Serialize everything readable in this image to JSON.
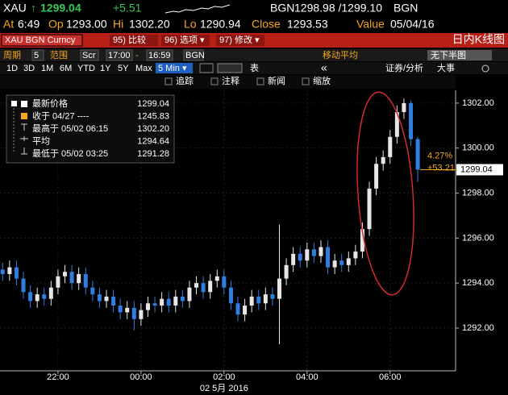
{
  "header": {
    "ticker": "XAU",
    "arrow": "↑",
    "last": "1299.04",
    "change": "+5.51",
    "source": "BGN",
    "bid_ask": "1298.98 /1299.10",
    "source2": "BGN"
  },
  "quote": [
    {
      "label": "At",
      "value": "6:49"
    },
    {
      "label": "Op",
      "value": "1293.00"
    },
    {
      "label": "Hi",
      "value": "1302.20"
    },
    {
      "label": "Lo",
      "value": "1290.94"
    },
    {
      "label": "Close",
      "value": "1293.53"
    },
    {
      "label": "Value",
      "value": "05/04/16"
    }
  ],
  "toolbar": {
    "security": "XAU BGN Curncy",
    "buttons": [
      "95) 比较",
      "96) 选项 ▾",
      "97) 修改 ▾"
    ],
    "view": "日内K线图"
  },
  "settings": {
    "items": [
      "周期",
      "5",
      "范围",
      "Scr",
      "17:00",
      "-",
      "16:59",
      "BGN"
    ],
    "moving_avg": "移动平均",
    "lower_panel": "无下半图"
  },
  "periods": {
    "items": [
      "1D",
      "3D",
      "1M",
      "6M",
      "YTD",
      "1Y",
      "5Y",
      "Max"
    ],
    "interval": "5 Min ▾",
    "table": "表",
    "nav": "«",
    "analysis": "证券/分析",
    "events": "大事"
  },
  "tools": [
    "追踪",
    "注释",
    "新闻",
    "缩放"
  ],
  "legend": [
    {
      "label": "最新价格",
      "value": "1299.04"
    },
    {
      "label": "收于 04/27 ----",
      "value": "1245.83"
    },
    {
      "label": "最高于 05/02 06:15",
      "value": "1302.20"
    },
    {
      "label": "平均",
      "value": "1294.64"
    },
    {
      "label": "最低于 05/02 03:25",
      "value": "1291.28"
    }
  ],
  "chart_data": {
    "type": "candlestick",
    "categories": [
      null,
      null,
      null,
      null,
      null,
      null,
      null,
      null,
      "22:00",
      null,
      null,
      null,
      null,
      null,
      null,
      null,
      null,
      null,
      null,
      null,
      "00:00",
      null,
      null,
      null,
      null,
      null,
      null,
      null,
      null,
      null,
      null,
      null,
      "02:00",
      null,
      null,
      null,
      null,
      null,
      null,
      null,
      null,
      null,
      null,
      null,
      "04:00",
      null,
      null,
      null,
      null,
      null,
      null,
      null,
      null,
      null,
      null,
      null,
      "06:00",
      null,
      null,
      null,
      null
    ],
    "x_sublabel": "02 5月 2016",
    "open": [
      1294.6,
      1294.4,
      1294.7,
      1294.2,
      1293.6,
      1293.2,
      1293.5,
      1293.3,
      1293.8,
      1294.3,
      1294.5,
      1294.0,
      1294.4,
      1293.8,
      1293.5,
      1293.2,
      1293.4,
      1293.0,
      1292.7,
      1292.9,
      1292.4,
      1292.8,
      1293.1,
      1293.0,
      1293.3,
      1293.0,
      1293.4,
      1293.2,
      1293.8,
      1294.0,
      1293.6,
      1294.1,
      1294.3,
      1293.8,
      1293.1,
      1292.6,
      1293.0,
      1293.4,
      1293.1,
      1293.5,
      1293.3,
      1294.2,
      1294.8,
      1295.3,
      1295.0,
      1295.5,
      1295.2,
      1295.6,
      1294.7,
      1295.0,
      1294.8,
      1295.1,
      1295.4,
      1296.4,
      1298.2,
      1299.3,
      1299.6,
      1300.5,
      1301.6,
      1302.0,
      1300.4
    ],
    "high": [
      1294.9,
      1295.0,
      1295.0,
      1294.5,
      1293.9,
      1293.8,
      1293.8,
      1294.1,
      1294.6,
      1294.8,
      1294.8,
      1294.7,
      1294.7,
      1294.1,
      1293.8,
      1293.7,
      1293.7,
      1293.3,
      1293.2,
      1293.2,
      1293.1,
      1293.4,
      1293.4,
      1293.6,
      1293.6,
      1293.7,
      1293.7,
      1294.1,
      1294.3,
      1294.3,
      1294.4,
      1294.6,
      1294.6,
      1294.1,
      1293.4,
      1293.3,
      1293.7,
      1293.7,
      1293.8,
      1293.8,
      1296.6,
      1295.1,
      1295.6,
      1295.6,
      1295.8,
      1295.8,
      1295.9,
      1295.9,
      1295.3,
      1295.3,
      1295.4,
      1295.7,
      1296.7,
      1298.5,
      1299.6,
      1299.9,
      1300.8,
      1301.9,
      1302.2,
      1302.1,
      1300.5
    ],
    "low": [
      1294.1,
      1294.1,
      1293.9,
      1293.3,
      1292.9,
      1292.9,
      1293.0,
      1293.0,
      1293.5,
      1294.0,
      1293.7,
      1293.7,
      1293.5,
      1293.2,
      1292.9,
      1292.9,
      1292.7,
      1292.4,
      1292.4,
      1291.9,
      1292.1,
      1292.5,
      1292.7,
      1292.7,
      1292.7,
      1292.7,
      1292.9,
      1292.9,
      1293.5,
      1293.3,
      1293.3,
      1293.8,
      1293.5,
      1292.8,
      1292.3,
      1292.3,
      1292.7,
      1292.8,
      1292.8,
      1293.0,
      1291.28,
      1293.9,
      1294.5,
      1294.7,
      1294.7,
      1294.9,
      1294.9,
      1294.4,
      1294.4,
      1294.5,
      1294.5,
      1294.8,
      1295.1,
      1296.1,
      1297.9,
      1299.0,
      1299.3,
      1300.2,
      1301.3,
      1300.1,
      1298.5
    ],
    "close": [
      1294.4,
      1294.7,
      1294.2,
      1293.6,
      1293.2,
      1293.5,
      1293.3,
      1293.8,
      1294.3,
      1294.5,
      1294.0,
      1294.4,
      1293.8,
      1293.5,
      1293.2,
      1293.4,
      1293.0,
      1292.7,
      1292.9,
      1292.4,
      1292.8,
      1293.1,
      1293.0,
      1293.3,
      1293.0,
      1293.4,
      1293.2,
      1293.8,
      1294.0,
      1293.6,
      1294.1,
      1294.3,
      1293.8,
      1293.1,
      1292.6,
      1293.0,
      1293.4,
      1293.1,
      1293.5,
      1293.3,
      1294.2,
      1294.8,
      1295.3,
      1295.0,
      1295.5,
      1295.2,
      1295.6,
      1294.7,
      1295.0,
      1294.8,
      1295.1,
      1295.4,
      1296.4,
      1298.2,
      1299.3,
      1299.6,
      1300.5,
      1301.6,
      1302.0,
      1300.4,
      1299.04
    ],
    "up_color": "#e6e6e6",
    "down_color": "#2f7fe0",
    "ylim": [
      1290.1,
      1302.57
    ],
    "yticks": [
      {
        "value": 1292,
        "label": "1292.00"
      },
      {
        "value": 1294,
        "label": "1294.00"
      },
      {
        "value": 1296,
        "label": "1296.00"
      },
      {
        "value": 1298,
        "label": "1298.00"
      },
      {
        "value": 1300,
        "label": "1300.00"
      },
      {
        "value": 1302,
        "label": "1302.00"
      }
    ],
    "grid": true,
    "last_price": {
      "value": 1299.04,
      "label": "1299.04"
    },
    "change_pct": "4.27%",
    "change_abs": "+53.21"
  }
}
